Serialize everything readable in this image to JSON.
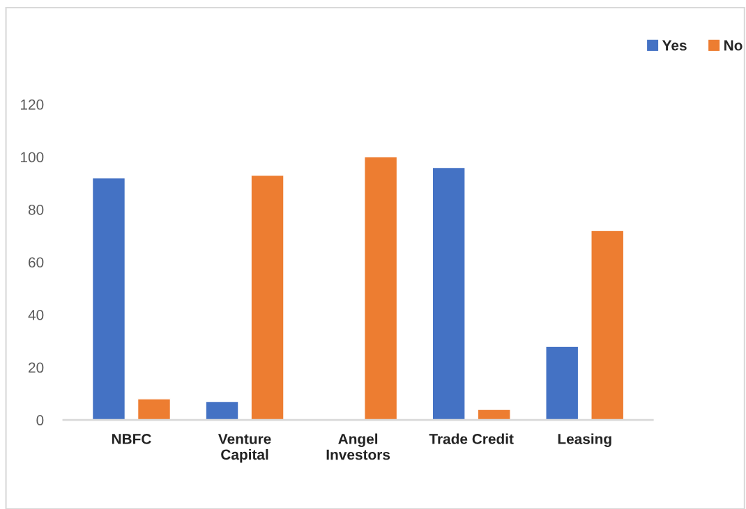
{
  "chart_data": {
    "type": "bar",
    "categories": [
      "NBFC",
      "Venture\nCapital",
      "Angel\nInvestors",
      "Trade Credit",
      "Leasing"
    ],
    "series": [
      {
        "name": "Yes",
        "color": "#4472c4",
        "values": [
          92,
          7,
          null,
          96,
          28
        ]
      },
      {
        "name": "No",
        "color": "#ed7d31",
        "values": [
          8,
          93,
          100,
          4,
          72
        ]
      }
    ],
    "ylim": [
      0,
      120
    ],
    "yticks": [
      0,
      20,
      40,
      60,
      80,
      100,
      120
    ],
    "grid": false,
    "legend": "top right"
  }
}
